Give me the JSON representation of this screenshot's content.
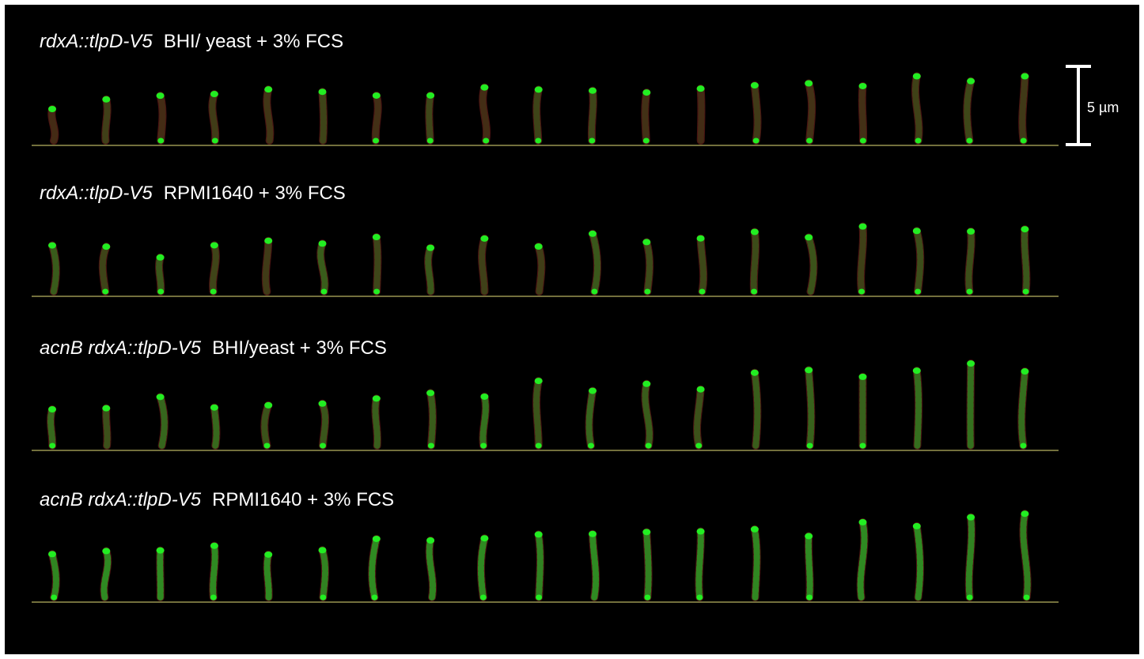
{
  "panels": [
    {
      "strain": "rdxA::tlpD-V5",
      "condition": "BHI/ yeast + 3% FCS"
    },
    {
      "strain": "rdxA::tlpD-V5",
      "condition": "RPMI1640 + 3% FCS"
    },
    {
      "strain": "acnB rdxA::tlpD-V5",
      "condition": "BHI/yeast + 3% FCS"
    },
    {
      "strain": "acnB rdxA::tlpD-V5",
      "condition": "RPMI1640 + 3% FCS"
    }
  ],
  "scale_bar": {
    "label": "5 µm"
  }
}
